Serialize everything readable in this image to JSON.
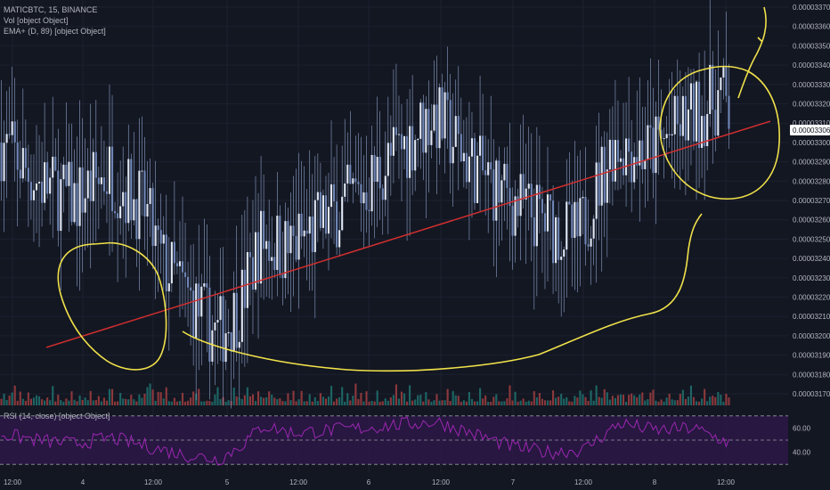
{
  "legend": {
    "title": "MATICBTC, 15, BINANCE",
    "volume": "Vol [object Object]",
    "ema": "EMA+ (D, 89) [object Object]",
    "rsi": "RSI (14, close) [object Object]"
  },
  "current_price": "0.00003306",
  "colors": {
    "background": "#131722",
    "candle_body": "#8ea3c9",
    "trendline": "#d32f2f",
    "annotation": "#f0e14a",
    "rsi_line": "#9c27b0",
    "rsi_band": "#2a1745",
    "vol_up": "#26a69a",
    "vol_down": "#ef5350"
  },
  "chart_data": [
    {
      "type": "candlestick",
      "title": "MATICBTC, 15, BINANCE",
      "ylim": [
        3.17e-05,
        3.37e-05
      ],
      "y_ticks": [
        "0.00003370",
        "0.00003360",
        "0.00003350",
        "0.00003340",
        "0.00003330",
        "0.00003320",
        "0.00003310",
        "0.00003300",
        "0.00003290",
        "0.00003280",
        "0.00003270",
        "0.00003260",
        "0.00003250",
        "0.00003240",
        "0.00003230",
        "0.00003220",
        "0.00003210",
        "0.00003200",
        "0.00003190",
        "0.00003180",
        "0.00003170"
      ],
      "x_ticks": [
        "12:00",
        "4",
        "12:00",
        "5",
        "12:00",
        "6",
        "12:00",
        "7",
        "12:00",
        "8",
        "12:00"
      ],
      "close_path": {
        "x": [
          0,
          5,
          10,
          15,
          20,
          22,
          25,
          30,
          33,
          36,
          40,
          45,
          50,
          55,
          60,
          65,
          70,
          75,
          80,
          85,
          90,
          95,
          100,
          101
        ],
        "y": [
          3.3e-05,
          3.28e-05,
          3.27e-05,
          3.285e-05,
          3.265e-05,
          3.24e-05,
          3.225e-05,
          3.2e-05,
          3.215e-05,
          3.25e-05,
          3.245e-05,
          3.26e-05,
          3.275e-05,
          3.295e-05,
          3.315e-05,
          3.29e-05,
          3.272e-05,
          3.26e-05,
          3.25e-05,
          3.3e-05,
          3.295e-05,
          3.31e-05,
          3.325e-05,
          3.315e-05
        ]
      },
      "trendline": {
        "x": [
          0.0,
          1.0
        ],
        "y": [
          3.194e-05,
          3.311e-05
        ]
      }
    },
    {
      "type": "line",
      "name": "RSI (14, close)",
      "ylim": [
        25,
        75
      ],
      "y_ticks": [
        "60.00",
        "40.00"
      ],
      "bands": [
        70,
        50,
        30
      ],
      "path": {
        "x": [
          0,
          5,
          10,
          15,
          20,
          25,
          30,
          33,
          36,
          40,
          45,
          50,
          55,
          60,
          65,
          70,
          75,
          80,
          85,
          90,
          95,
          100
        ],
        "y": [
          55,
          50,
          47,
          52,
          45,
          38,
          34,
          46,
          62,
          56,
          58,
          60,
          63,
          65,
          55,
          45,
          40,
          42,
          64,
          58,
          60,
          48
        ]
      }
    }
  ]
}
